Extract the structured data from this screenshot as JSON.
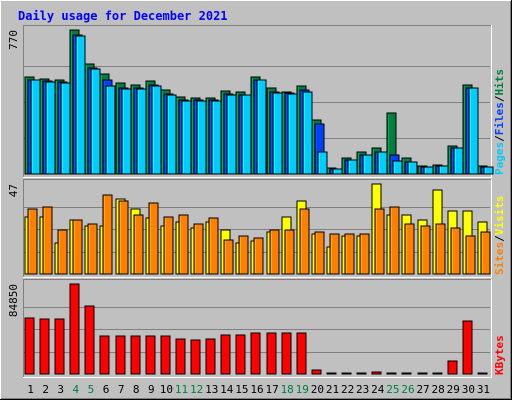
{
  "chart_data": {
    "type": "bar",
    "title": "Daily usage for December 2021",
    "x": [
      1,
      2,
      3,
      4,
      5,
      6,
      7,
      8,
      9,
      10,
      11,
      12,
      13,
      14,
      15,
      16,
      17,
      18,
      19,
      20,
      21,
      22,
      23,
      24,
      25,
      26,
      27,
      28,
      29,
      30,
      31
    ],
    "weekend_days": [
      4,
      5,
      11,
      12,
      18,
      19,
      25,
      26
    ],
    "panels": [
      {
        "name": "hits-files-pages",
        "ymax_label": "770",
        "ylim": [
          0,
          770
        ],
        "legend": [
          "Pages",
          "/",
          "Files",
          "/",
          "Hits"
        ],
        "legend_colors": [
          "#00ccff",
          "#000000",
          "#0040ff",
          "#000000",
          "#008040"
        ],
        "series": [
          {
            "name": "Hits",
            "color": "#008040",
            "values": [
              520,
              510,
              505,
              770,
              590,
              535,
              488,
              475,
              498,
              450,
              410,
              405,
              405,
              445,
              440,
              520,
              458,
              440,
              470,
              290,
              32,
              88,
              115,
              140,
              325,
              85,
              45,
              50,
              148,
              475,
              45
            ]
          },
          {
            "name": "Files",
            "color": "#0040ff",
            "values": [
              505,
              495,
              490,
              742,
              565,
              505,
              460,
              460,
              478,
              430,
              395,
              395,
              395,
              430,
              425,
              505,
              440,
              435,
              450,
              268,
              25,
              75,
              100,
              115,
              100,
              65,
              40,
              45,
              138,
              462,
              35
            ]
          },
          {
            "name": "Pages",
            "color": "#00ccff",
            "values": [
              500,
              490,
              485,
              737,
              560,
              470,
              455,
              455,
              470,
              425,
              390,
              390,
              390,
              425,
              420,
              500,
              435,
              430,
              440,
              115,
              25,
              75,
              100,
              115,
              70,
              65,
              40,
              45,
              138,
              460,
              35
            ]
          }
        ]
      },
      {
        "name": "visits-sites",
        "ymax_label": "47",
        "ylim": [
          0,
          47
        ],
        "legend": [
          "Sites",
          "/",
          "Visits"
        ],
        "legend_colors": [
          "#ff8000",
          "#000000",
          "#ffff00"
        ],
        "series": [
          {
            "name": "Visits",
            "color": "#ffff00",
            "values": [
              30,
              30,
              16,
              28,
              25,
              25,
              39,
              34,
              29,
              25,
              27,
              24,
              27,
              23,
              16,
              17,
              22,
              30,
              38,
              21,
              14,
              20,
              20,
              47,
              31,
              31,
              28,
              44,
              33,
              33,
              27
            ]
          },
          {
            "name": "Sites",
            "color": "#ff8000",
            "values": [
              34,
              35,
              23,
              28,
              26,
              41,
              38,
              31,
              37,
              30,
              31,
              26,
              29,
              18,
              20,
              19,
              23,
              23,
              34,
              22,
              21,
              21,
              21,
              34,
              35,
              26,
              25,
              26,
              24,
              20,
              22
            ]
          }
        ]
      },
      {
        "name": "kbytes",
        "ymax_label": "84850",
        "ylim": [
          0,
          84850
        ],
        "legend": [
          "KBytes"
        ],
        "legend_colors": [
          "#ff0000"
        ],
        "series": [
          {
            "name": "KBytes",
            "color": "#ff0000",
            "values": [
              53200,
              52200,
              52200,
              84850,
              64000,
              36000,
              36000,
              36000,
              36000,
              36000,
              33200,
              32200,
              33200,
              36800,
              36800,
              39000,
              39000,
              39000,
              39000,
              4000,
              500,
              500,
              500,
              2000,
              500,
              500,
              500,
              500,
              11800,
              50300,
              500
            ]
          }
        ]
      }
    ]
  }
}
